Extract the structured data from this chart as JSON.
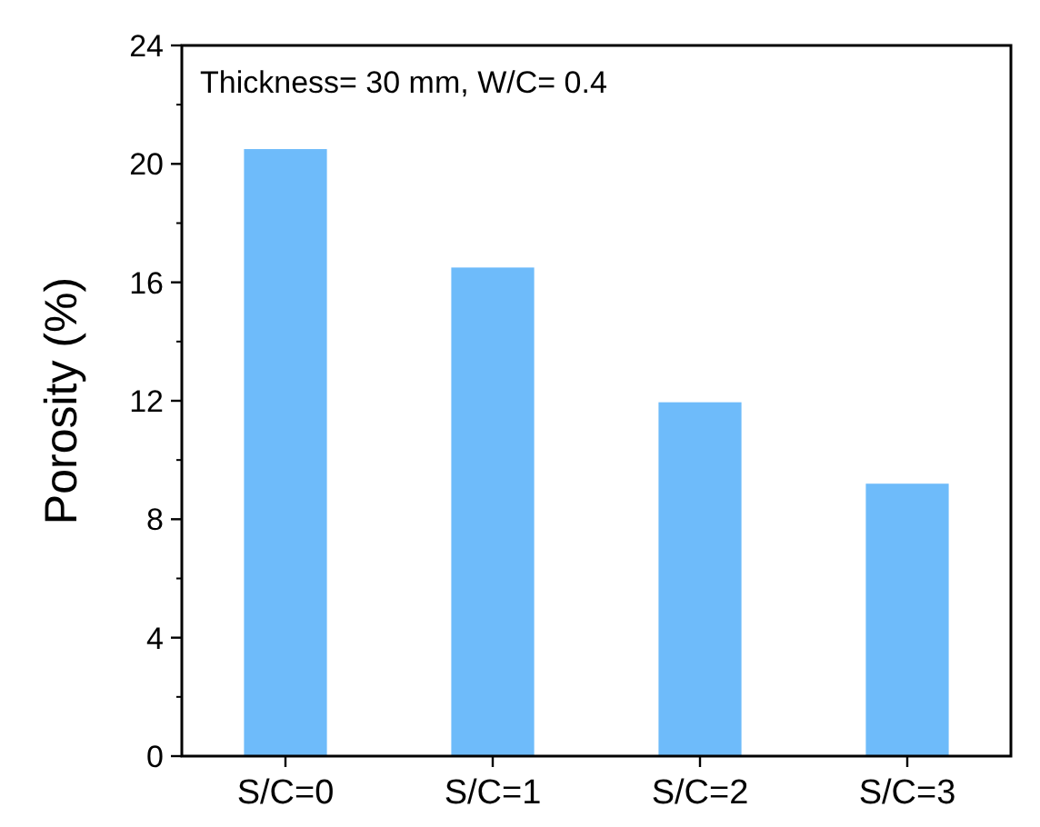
{
  "chart_data": {
    "type": "bar",
    "ylabel": "Porosity (%)",
    "annotations": [
      "Thickness= 30 mm, W/C= 0.4"
    ],
    "categories": [
      "S/C=0",
      "S/C=1",
      "S/C=2",
      "S/C=3"
    ],
    "values": [
      20.5,
      16.5,
      11.95,
      9.2
    ],
    "color": "#6ebbfa",
    "ylim": [
      0,
      24
    ],
    "yticks": [
      0,
      4,
      8,
      12,
      16,
      20,
      24
    ],
    "grid": false
  }
}
